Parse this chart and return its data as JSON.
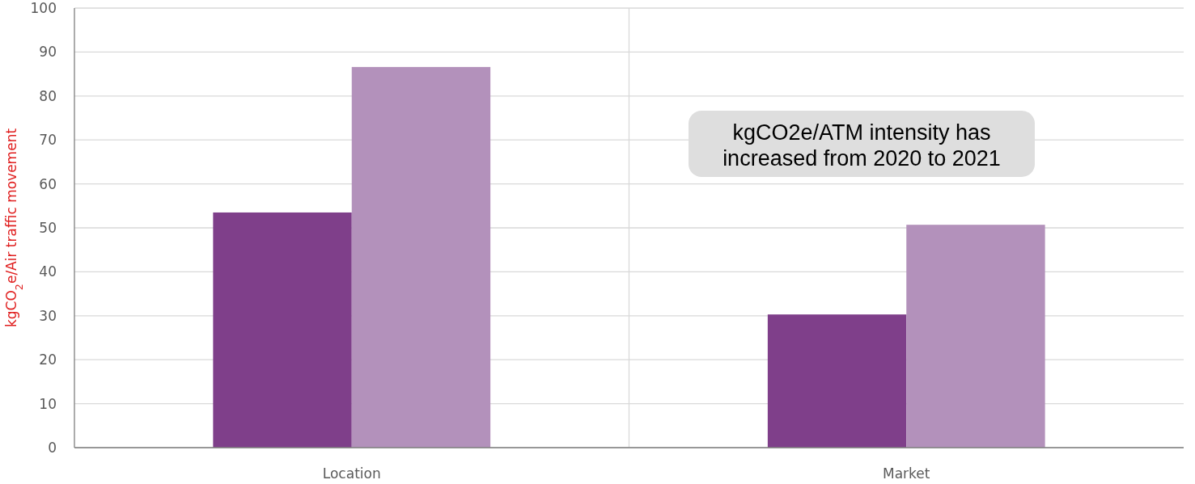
{
  "chart_data": {
    "type": "bar",
    "categories": [
      "Location",
      "Market"
    ],
    "series": [
      {
        "color": "#7f3f8a",
        "values": [
          53.5,
          30.3
        ]
      },
      {
        "color": "#b391bb",
        "values": [
          86.6,
          50.7
        ]
      }
    ],
    "ylabel": "kgCO$_{2}$e/Air traffic movement",
    "ylim": [
      0,
      100
    ],
    "yticks": [
      0,
      10,
      20,
      30,
      40,
      50,
      60,
      70,
      80,
      90,
      100
    ],
    "grid": true,
    "annotations": [
      "kgCO2e/ATM intensity has increased from 2020 to 2021"
    ]
  }
}
